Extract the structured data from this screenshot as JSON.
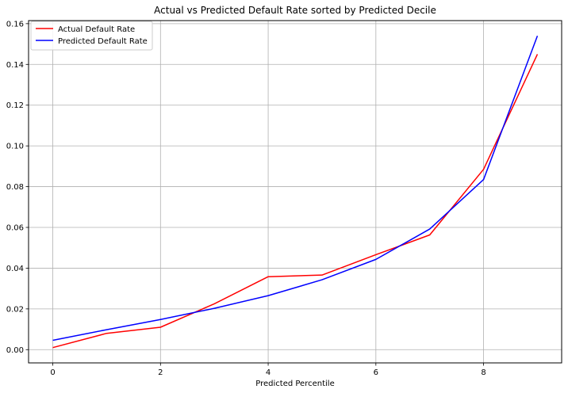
{
  "chart_data": {
    "type": "line",
    "title": "Actual vs Predicted Default Rate sorted by Predicted Decile",
    "xlabel": "Predicted Percentile",
    "ylabel": "",
    "xlim": [
      -0.45,
      9.45
    ],
    "ylim": [
      -0.0065,
      0.1615
    ],
    "x_ticks": [
      0,
      2,
      4,
      6,
      8
    ],
    "x_tick_labels": [
      "0",
      "2",
      "4",
      "6",
      "8"
    ],
    "y_ticks": [
      0.0,
      0.02,
      0.04,
      0.06,
      0.08,
      0.1,
      0.12,
      0.14,
      0.16
    ],
    "y_tick_labels": [
      "0.00",
      "0.02",
      "0.04",
      "0.06",
      "0.08",
      "0.10",
      "0.12",
      "0.14",
      "0.16"
    ],
    "grid": true,
    "legend_position": "top-left",
    "x": [
      0,
      1,
      2,
      3,
      4,
      5,
      6,
      7,
      8,
      9
    ],
    "series": [
      {
        "name": "Actual Default Rate",
        "color": "#ff0000",
        "values": [
          0.001,
          0.008,
          0.011,
          0.0225,
          0.0358,
          0.0366,
          0.0466,
          0.0563,
          0.0885,
          0.145
        ]
      },
      {
        "name": "Predicted Default Rate",
        "color": "#0000ff",
        "values": [
          0.0046,
          0.0098,
          0.0148,
          0.0203,
          0.0265,
          0.0343,
          0.0443,
          0.0592,
          0.0835,
          0.154
        ]
      }
    ]
  }
}
